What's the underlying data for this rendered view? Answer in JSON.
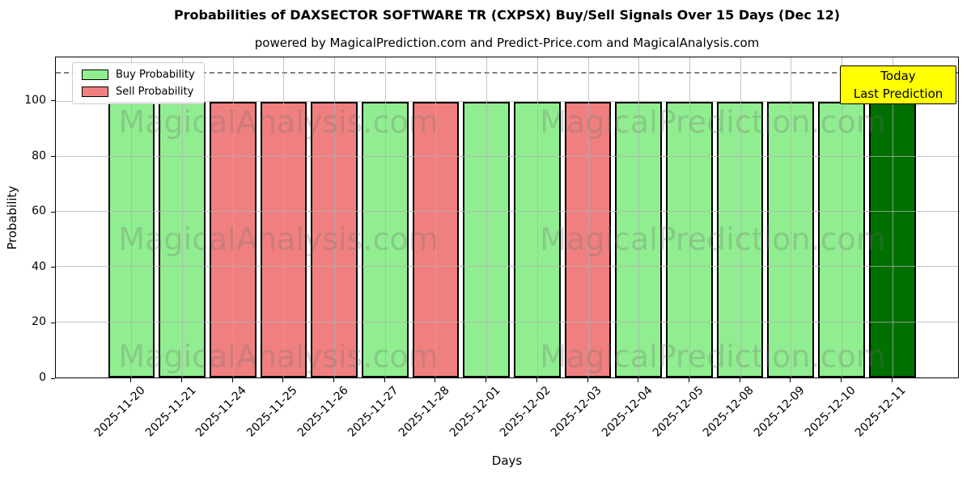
{
  "title": "Probabilities of DAXSECTOR SOFTWARE TR (CXPSX) Buy/Sell Signals Over 15 Days (Dec 12)",
  "subtitle": "powered by MagicalPrediction.com and Predict-Price.com and MagicalAnalysis.com",
  "legend": {
    "buy_label": "Buy Probability",
    "sell_label": "Sell Probability"
  },
  "annotation": {
    "line1": "Today",
    "line2": "Last Prediction"
  },
  "watermarks": {
    "left": "MagicalAnalysis.com",
    "right": "MagicalPrediction.com"
  },
  "colors": {
    "buy": "#90EE90",
    "sell": "#F08080",
    "today": "#007000",
    "annotation_bg": "#FFFF00",
    "grid": "#b0b0b0",
    "bar_edge": "#000000"
  },
  "chart_data": {
    "type": "bar",
    "title": "Probabilities of DAXSECTOR SOFTWARE TR (CXPSX) Buy/Sell Signals Over 15 Days (Dec 12)",
    "xlabel": "Days",
    "ylabel": "Probability",
    "ylim": [
      0,
      116
    ],
    "yticks": [
      0,
      20,
      40,
      60,
      80,
      100
    ],
    "dashed_line_y": 110,
    "grid": true,
    "legend_position": "upper-left",
    "categories": [
      "2025-11-20",
      "2025-11-21",
      "2025-11-24",
      "2025-11-25",
      "2025-11-26",
      "2025-11-27",
      "2025-11-28",
      "2025-12-01",
      "2025-12-02",
      "2025-12-03",
      "2025-12-04",
      "2025-12-05",
      "2025-12-08",
      "2025-12-09",
      "2025-12-10",
      "2025-12-11"
    ],
    "values": [
      100,
      100,
      100,
      100,
      100,
      100,
      100,
      100,
      100,
      100,
      100,
      100,
      100,
      100,
      100,
      100
    ],
    "signals": [
      "buy",
      "buy",
      "sell",
      "sell",
      "sell",
      "buy",
      "sell",
      "buy",
      "buy",
      "sell",
      "buy",
      "buy",
      "buy",
      "buy",
      "buy",
      "today"
    ]
  }
}
